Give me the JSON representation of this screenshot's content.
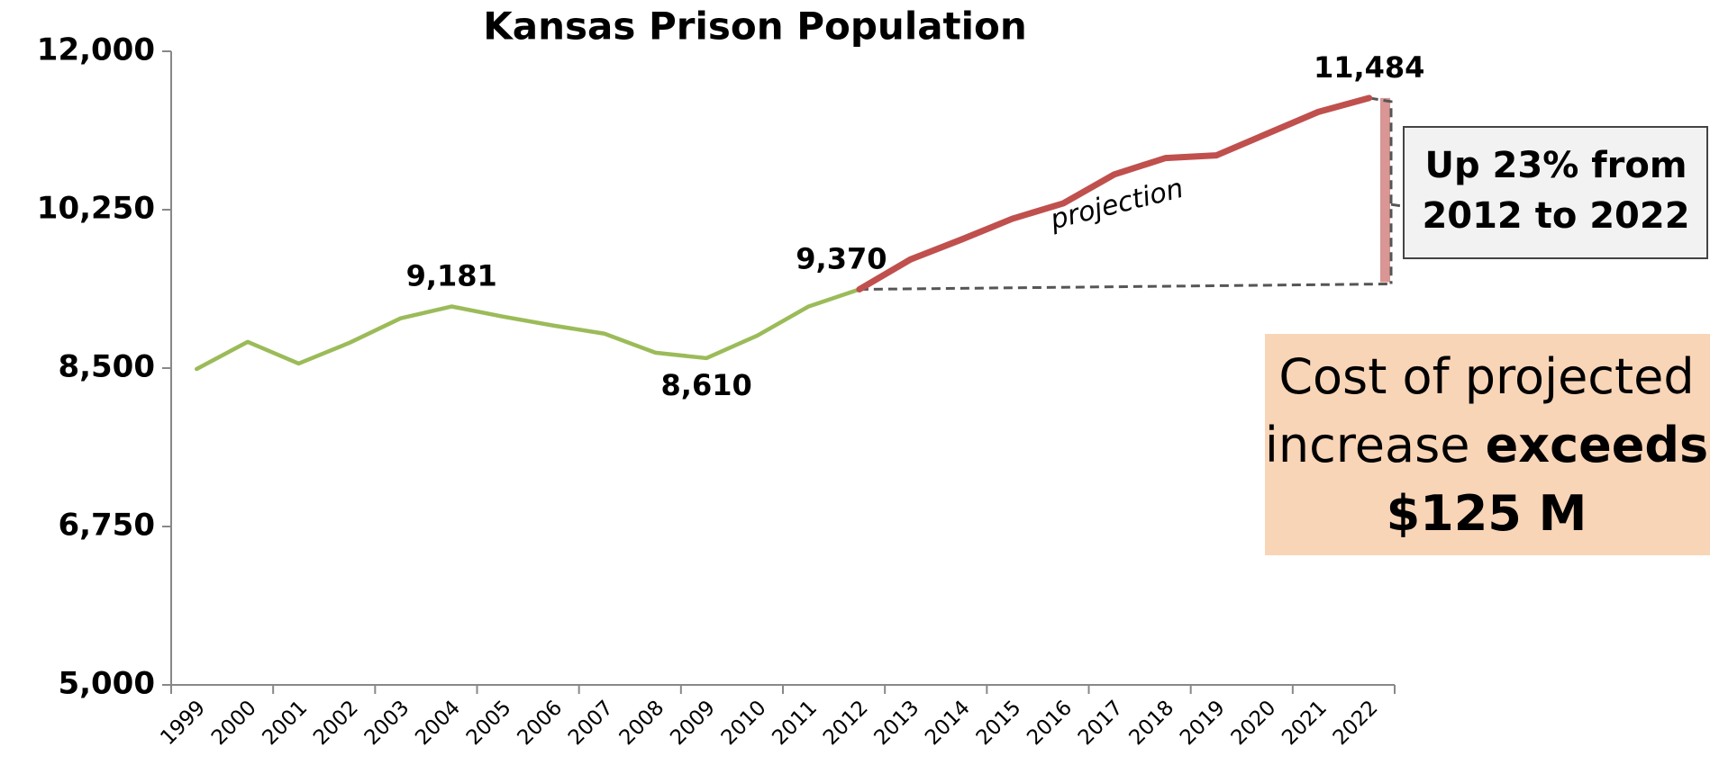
{
  "chart_data": {
    "type": "line",
    "title": "Kansas Prison Population",
    "categories": [
      "1999",
      "2000",
      "2001",
      "2002",
      "2003",
      "2004",
      "2005",
      "2006",
      "2007",
      "2008",
      "2009",
      "2010",
      "2011",
      "2012",
      "2013",
      "2014",
      "2015",
      "2016",
      "2017",
      "2018",
      "2019",
      "2020",
      "2021",
      "2022"
    ],
    "series": [
      {
        "color": "#9bbb59",
        "values": [
          8490,
          8790,
          8550,
          8780,
          9050,
          9181,
          9070,
          8970,
          8880,
          8670,
          8610,
          8860,
          9180,
          9370,
          null,
          null,
          null,
          null,
          null,
          null,
          null,
          null,
          null,
          null
        ],
        "value_labels": [
          null,
          null,
          null,
          null,
          null,
          "9,181",
          null,
          null,
          null,
          null,
          "8,610",
          null,
          null,
          "9,370",
          null,
          null,
          null,
          null,
          null,
          null,
          null,
          null,
          null,
          null
        ]
      },
      {
        "name": "projection",
        "color": "#c0504d",
        "values": [
          null,
          null,
          null,
          null,
          null,
          null,
          null,
          null,
          null,
          null,
          null,
          null,
          null,
          9370,
          9700,
          9920,
          10150,
          10320,
          10640,
          10820,
          10850,
          11090,
          11330,
          11484
        ],
        "value_labels": [
          null,
          null,
          null,
          null,
          null,
          null,
          null,
          null,
          null,
          null,
          null,
          null,
          null,
          null,
          null,
          null,
          null,
          null,
          null,
          null,
          null,
          null,
          null,
          "11,484"
        ]
      }
    ],
    "ylim": [
      5000,
      12000
    ],
    "yticks": [
      {
        "value": 5000,
        "label": "5,000"
      },
      {
        "value": 6750,
        "label": "6,750"
      },
      {
        "value": 8500,
        "label": "8,500"
      },
      {
        "value": 10250,
        "label": "10,250"
      },
      {
        "value": 12000,
        "label": "12,000"
      }
    ],
    "grid": false,
    "annotations": [
      {
        "lines": [
          "Up 23%  from",
          "2012 to 2022"
        ]
      },
      {
        "lines": [
          [
            {
              "text": "Cost of projected"
            }
          ],
          [
            {
              "text": "increase "
            },
            {
              "text": "exceeds",
              "bold": true
            }
          ],
          [
            {
              "text": "$125 M",
              "bold": true
            }
          ]
        ]
      }
    ]
  }
}
